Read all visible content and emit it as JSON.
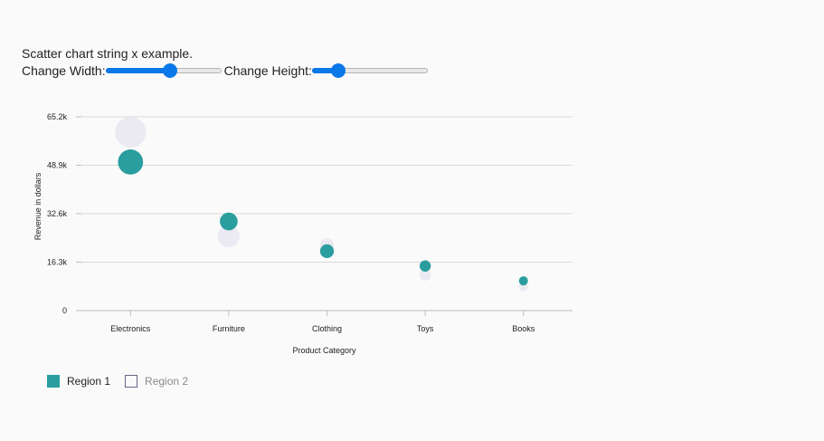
{
  "page": {
    "title": "Scatter chart string x example.",
    "width_label": "Change Width:",
    "height_label": "Change Height:",
    "width_slider_value": 0.56,
    "height_slider_value": 0.23
  },
  "colors": {
    "region1": "#2a9d9f",
    "region2": "#ebe9f1",
    "grid": "#d9d9d9",
    "axis": "#bdbdbd",
    "slider_accent": "#0a78e8"
  },
  "chart_data": {
    "type": "scatter",
    "categories": [
      "Electronics",
      "Furniture",
      "Clothing",
      "Toys",
      "Books"
    ],
    "series": [
      {
        "name": "Region 1",
        "values": [
          50000,
          30000,
          20000,
          15000,
          10000
        ],
        "bubble_size": [
          20000,
          10000,
          6000,
          4000,
          2500
        ]
      },
      {
        "name": "Region 2",
        "values": [
          60000,
          25000,
          22000,
          12000,
          8000
        ],
        "bubble_size": [
          30000,
          15000,
          6000,
          4000,
          1000
        ]
      }
    ],
    "xlabel": "Product Category",
    "ylabel": "Revenue in dollars",
    "ylim": [
      0,
      65200
    ],
    "yticks": [
      0,
      16300,
      32600,
      48900,
      65200
    ],
    "ytick_labels": [
      "0",
      "16.3k",
      "32.6k",
      "48.9k",
      "65.2k"
    ],
    "grid": true,
    "legend_position": "bottom-left"
  }
}
